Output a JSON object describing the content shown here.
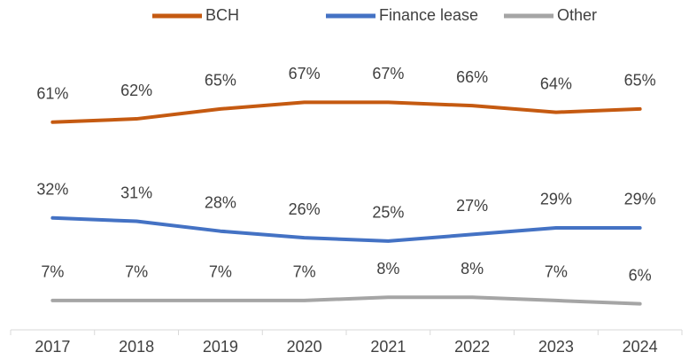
{
  "chart_data": {
    "type": "line",
    "categories": [
      "2017",
      "2018",
      "2019",
      "2020",
      "2021",
      "2022",
      "2023",
      "2024"
    ],
    "series": [
      {
        "name": "BCH",
        "color": "#c55a11",
        "values": [
          61,
          62,
          65,
          67,
          67,
          66,
          64,
          65
        ],
        "value_labels": [
          "61%",
          "62%",
          "65%",
          "67%",
          "67%",
          "66%",
          "64%",
          "65%"
        ]
      },
      {
        "name": "Finance lease",
        "color": "#4472c4",
        "values": [
          32,
          31,
          28,
          26,
          25,
          27,
          29,
          29
        ],
        "value_labels": [
          "32%",
          "31%",
          "28%",
          "26%",
          "25%",
          "27%",
          "29%",
          "29%"
        ]
      },
      {
        "name": "Other",
        "color": "#a5a5a5",
        "values": [
          7,
          7,
          7,
          7,
          8,
          8,
          7,
          6
        ],
        "value_labels": [
          "7%",
          "7%",
          "7%",
          "7%",
          "8%",
          "8%",
          "7%",
          "6%"
        ]
      }
    ],
    "ylim": [
      0,
      80
    ],
    "legend": "top",
    "grid": false
  }
}
